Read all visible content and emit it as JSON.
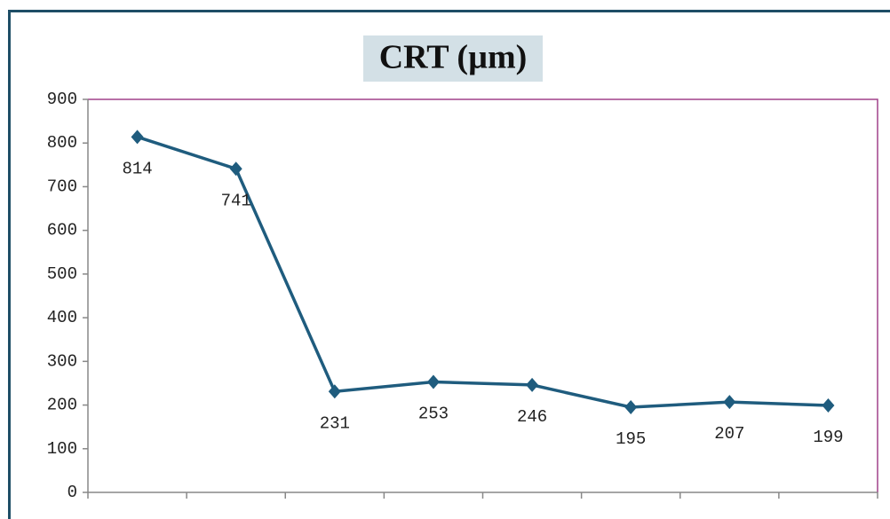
{
  "chart_data": {
    "type": "line",
    "title": "CRT (µm)",
    "categories": [
      null,
      null,
      null,
      null,
      null,
      null,
      null,
      null
    ],
    "values": [
      814,
      741,
      231,
      253,
      246,
      195,
      207,
      199
    ],
    "color": "#1f5c7e",
    "ylim": [
      0,
      900
    ],
    "yticks": [
      0,
      100,
      200,
      300,
      400,
      500,
      600,
      700,
      800,
      900
    ],
    "grid": false
  }
}
